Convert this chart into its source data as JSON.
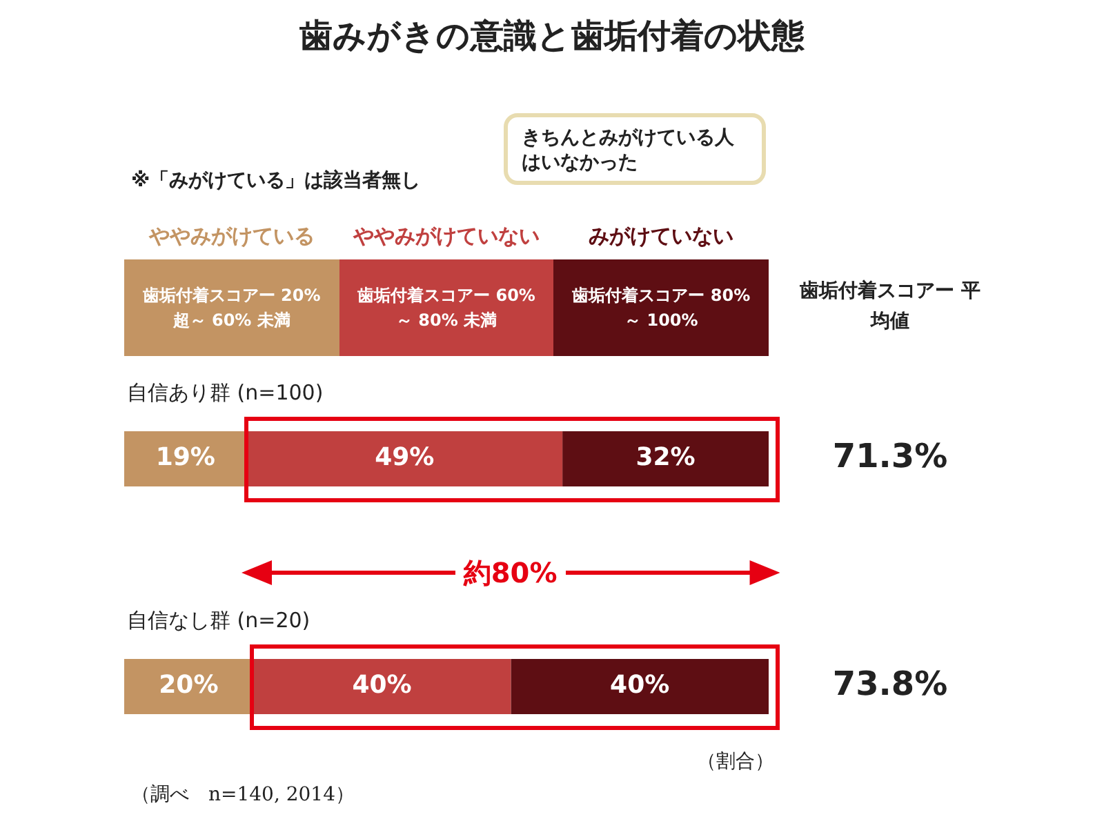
{
  "chart_data": {
    "type": "bar",
    "orientation": "horizontal",
    "stacked": true,
    "tick_labels": false,
    "title": "歯みがきの意識と歯垢付着の状態",
    "categories": [
      "自信あり群 (n=100)",
      "自信なし群 (n=20)"
    ],
    "series": [
      {
        "name": "ややみがけている",
        "color": "#c39463",
        "values": [
          19,
          20
        ],
        "value_labels": [
          "19%",
          "20%"
        ]
      },
      {
        "name": "ややみがけていない",
        "color": "#c0403f",
        "values": [
          49,
          40
        ],
        "value_labels": [
          "49%",
          "40%"
        ]
      },
      {
        "name": "みがけていない",
        "color": "#5e0e13",
        "values": [
          32,
          40
        ],
        "value_labels": [
          "32%",
          "40%"
        ]
      }
    ],
    "legend": "top",
    "annotations": [
      "※「みがけている」は該当者無し",
      "きちんとみがけている人はいなかった",
      "歯垢付着スコアー 20% 超～ 60% 未満",
      "歯垢付着スコアー 60% ～ 80% 未満",
      "歯垢付着スコアー 80% ～ 100%",
      "歯垢付着スコアー 平均値",
      "71.3%",
      "73.8%",
      "約80%",
      "（割合）",
      "（調べ　n=140, 2014）"
    ]
  }
}
